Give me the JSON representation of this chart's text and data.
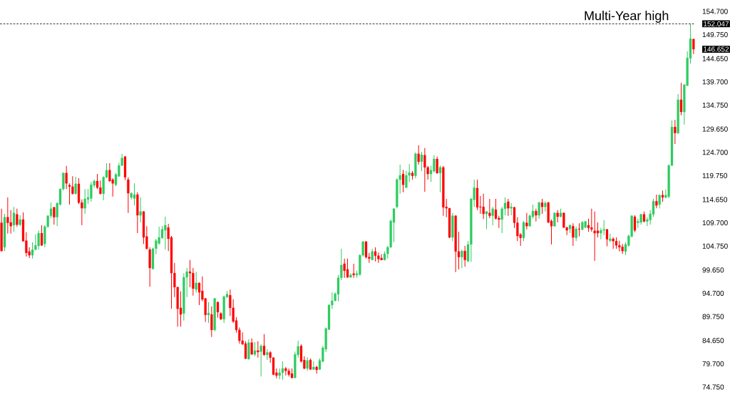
{
  "chart_data": {
    "type": "candlestick",
    "categories": [
      null,
      null,
      null,
      null,
      null,
      null,
      null,
      null,
      null,
      null,
      null,
      null,
      null,
      null,
      null,
      null,
      null,
      null,
      null,
      null,
      null,
      null,
      null,
      null,
      null,
      null,
      null,
      null,
      null,
      null,
      null,
      null,
      null,
      null,
      null,
      null,
      null,
      null,
      null,
      null,
      null,
      null,
      null,
      null,
      null,
      null,
      null,
      null,
      null,
      null,
      null,
      null,
      null,
      null,
      null,
      null,
      null,
      null,
      null,
      null,
      null,
      null,
      null,
      null,
      null,
      null,
      null,
      null,
      null,
      null,
      null,
      null,
      null,
      null,
      null,
      null,
      null,
      null,
      null,
      null,
      null,
      null,
      null,
      null,
      null,
      null,
      null,
      null,
      null,
      null,
      null,
      null,
      null,
      null,
      null,
      null,
      null,
      null,
      null,
      null,
      null,
      null,
      null,
      null,
      null,
      null,
      null,
      null,
      null,
      null,
      null,
      null,
      null,
      null,
      null,
      null,
      null,
      null,
      null,
      null,
      null,
      null,
      null,
      null,
      null,
      null,
      null,
      null,
      null,
      null,
      null,
      null,
      null,
      null,
      null,
      null,
      null,
      null,
      null,
      null,
      null,
      null,
      null,
      null,
      null,
      null,
      null,
      null,
      null,
      null,
      null,
      null,
      null,
      null,
      null,
      null,
      null,
      null,
      null,
      null,
      null,
      null,
      null,
      null,
      null,
      null,
      null,
      null,
      null,
      null,
      null,
      null,
      null,
      null,
      null,
      null,
      null,
      null,
      null,
      null,
      null,
      null,
      null,
      null,
      null,
      null,
      null,
      null,
      null,
      null,
      null,
      null,
      null,
      null,
      null,
      null,
      null,
      null,
      null,
      null,
      null,
      null,
      null,
      null,
      null,
      null,
      null,
      null,
      null,
      null,
      null,
      null,
      null,
      null,
      null,
      null,
      null,
      null,
      null,
      null,
      null,
      null,
      null,
      null,
      null
    ],
    "ohlc": [
      [
        109.7,
        112.7,
        103.6,
        103.7
      ],
      [
        104.5,
        111.6,
        103.7,
        110.9
      ],
      [
        110.9,
        115.1,
        107.4,
        109.7
      ],
      [
        109.8,
        112.4,
        107.4,
        109.0
      ],
      [
        109.2,
        113.1,
        107.8,
        111.8
      ],
      [
        111.5,
        112.7,
        108.9,
        109.3
      ],
      [
        109.3,
        111.3,
        109.0,
        110.4
      ],
      [
        110.4,
        111.9,
        105.7,
        105.8
      ],
      [
        105.9,
        107.7,
        102.5,
        103.3
      ],
      [
        103.6,
        104.5,
        102.2,
        102.8
      ],
      [
        102.8,
        105.6,
        102.1,
        104.0
      ],
      [
        104.0,
        107.2,
        103.9,
        104.9
      ],
      [
        104.8,
        108.1,
        104.0,
        107.5
      ],
      [
        107.5,
        109.2,
        104.8,
        104.9
      ],
      [
        105.2,
        109.2,
        104.5,
        108.9
      ],
      [
        108.9,
        111.3,
        108.6,
        111.2
      ],
      [
        111.2,
        114.0,
        110.7,
        112.7
      ],
      [
        113.0,
        113.1,
        109.3,
        110.9
      ],
      [
        110.9,
        114.0,
        109.0,
        113.9
      ],
      [
        113.6,
        117.0,
        113.4,
        116.9
      ],
      [
        116.9,
        120.4,
        116.6,
        120.3
      ],
      [
        120.3,
        121.8,
        116.9,
        118.1
      ],
      [
        117.7,
        118.1,
        113.6,
        117.4
      ],
      [
        117.4,
        119.6,
        115.7,
        115.9
      ],
      [
        115.9,
        119.5,
        115.7,
        118.0
      ],
      [
        118.0,
        119.2,
        113.7,
        114.0
      ],
      [
        114.0,
        114.7,
        109.2,
        112.8
      ],
      [
        112.8,
        116.9,
        111.6,
        114.8
      ],
      [
        114.7,
        116.9,
        113.7,
        115.1
      ],
      [
        114.9,
        118.4,
        114.2,
        117.8
      ],
      [
        117.7,
        118.9,
        117.2,
        118.6
      ],
      [
        118.6,
        120.1,
        116.9,
        117.2
      ],
      [
        117.2,
        118.7,
        115.7,
        115.9
      ],
      [
        115.9,
        119.6,
        114.5,
        119.4
      ],
      [
        119.4,
        122.4,
        119.2,
        120.9
      ],
      [
        120.9,
        122.4,
        118.4,
        118.6
      ],
      [
        118.9,
        119.2,
        115.3,
        118.1
      ],
      [
        117.8,
        120.3,
        117.5,
        120.0
      ],
      [
        119.6,
        122.5,
        119.5,
        121.9
      ],
      [
        121.9,
        124.4,
        121.8,
        123.5
      ],
      [
        123.8,
        123.9,
        118.8,
        119.4
      ],
      [
        118.9,
        119.4,
        111.8,
        116.0
      ],
      [
        115.1,
        116.2,
        114.7,
        116.0
      ],
      [
        114.9,
        118.1,
        113.4,
        115.7
      ],
      [
        115.7,
        116.2,
        107.5,
        111.3
      ],
      [
        111.3,
        115.1,
        109.8,
        112.1
      ],
      [
        112.1,
        112.2,
        105.2,
        106.6
      ],
      [
        106.8,
        109.0,
        104.0,
        104.2
      ],
      [
        104.0,
        104.5,
        96.1,
        100.1
      ],
      [
        99.9,
        104.4,
        99.8,
        104.2
      ],
      [
        104.2,
        106.3,
        103.0,
        105.9
      ],
      [
        105.3,
        108.9,
        105.0,
        106.6
      ],
      [
        106.5,
        109.0,
        106.3,
        108.3
      ],
      [
        108.1,
        111.0,
        104.0,
        109.2
      ],
      [
        108.7,
        109.5,
        103.7,
        106.3
      ],
      [
        106.6,
        106.9,
        91.4,
        99.0
      ],
      [
        99.0,
        101.2,
        93.9,
        96.0
      ],
      [
        96.0,
        96.1,
        87.6,
        91.4
      ],
      [
        91.6,
        95.1,
        87.6,
        90.2
      ],
      [
        90.4,
        99.0,
        88.9,
        98.1
      ],
      [
        98.1,
        100.1,
        93.9,
        99.3
      ],
      [
        99.3,
        101.8,
        96.0,
        99.0
      ],
      [
        99.0,
        100.1,
        94.2,
        95.7
      ],
      [
        95.5,
        99.3,
        94.8,
        96.9
      ],
      [
        96.9,
        97.0,
        92.2,
        94.9
      ],
      [
        95.2,
        98.3,
        93.0,
        93.4
      ],
      [
        93.6,
        93.7,
        88.6,
        90.1
      ],
      [
        90.1,
        92.8,
        88.4,
        90.5
      ],
      [
        90.2,
        91.9,
        85.4,
        86.9
      ],
      [
        86.9,
        93.7,
        86.6,
        93.6
      ],
      [
        92.8,
        93.0,
        89.5,
        90.7
      ],
      [
        90.4,
        90.7,
        89.0,
        89.2
      ],
      [
        89.2,
        94.2,
        88.4,
        94.0
      ],
      [
        93.9,
        95.2,
        93.7,
        94.5
      ],
      [
        94.3,
        95.5,
        89.9,
        91.6
      ],
      [
        91.6,
        93.4,
        88.4,
        88.7
      ],
      [
        88.9,
        89.6,
        86.3,
        86.9
      ],
      [
        86.9,
        87.4,
        84.0,
        84.6
      ],
      [
        84.6,
        86.4,
        83.7,
        83.9
      ],
      [
        84.0,
        84.5,
        80.7,
        80.8
      ],
      [
        80.7,
        84.9,
        80.6,
        84.2
      ],
      [
        84.2,
        85.1,
        81.6,
        81.7
      ],
      [
        81.7,
        84.3,
        81.3,
        82.5
      ],
      [
        82.5,
        84.5,
        81.0,
        82.2
      ],
      [
        82.3,
        83.8,
        77.0,
        83.5
      ],
      [
        83.5,
        86.0,
        81.4,
        81.6
      ],
      [
        81.6,
        82.8,
        80.5,
        82.1
      ],
      [
        82.1,
        82.4,
        79.9,
        81.0
      ],
      [
        81.0,
        81.1,
        77.3,
        77.4
      ],
      [
        77.8,
        78.7,
        76.6,
        77.2
      ],
      [
        77.2,
        78.7,
        76.4,
        77.8
      ],
      [
        77.8,
        80.2,
        76.3,
        78.7
      ],
      [
        78.7,
        79.0,
        77.2,
        78.2
      ],
      [
        78.2,
        78.7,
        77.0,
        77.4
      ],
      [
        77.6,
        78.7,
        76.6,
        76.7
      ],
      [
        76.7,
        82.3,
        76.6,
        81.7
      ],
      [
        81.6,
        84.6,
        81.0,
        83.4
      ],
      [
        83.5,
        83.8,
        80.0,
        80.2
      ],
      [
        80.5,
        81.3,
        78.5,
        78.7
      ],
      [
        78.7,
        81.1,
        78.2,
        80.4
      ],
      [
        80.5,
        80.8,
        78.4,
        78.5
      ],
      [
        78.5,
        80.2,
        78.4,
        79.0
      ],
      [
        79.0,
        79.3,
        77.6,
        78.4
      ],
      [
        78.5,
        80.8,
        78.4,
        80.4
      ],
      [
        80.2,
        83.5,
        80.0,
        83.1
      ],
      [
        82.8,
        87.4,
        82.2,
        87.2
      ],
      [
        87.0,
        92.4,
        86.9,
        92.2
      ],
      [
        92.2,
        94.9,
        91.4,
        93.1
      ],
      [
        93.1,
        94.9,
        93.0,
        94.6
      ],
      [
        94.5,
        98.6,
        93.0,
        98.0
      ],
      [
        98.0,
        104.2,
        97.5,
        100.7
      ],
      [
        101.0,
        102.1,
        98.0,
        99.5
      ],
      [
        99.8,
        102.1,
        98.0,
        98.1
      ],
      [
        98.1,
        99.0,
        98.0,
        98.6
      ],
      [
        98.9,
        101.0,
        98.0,
        98.6
      ],
      [
        98.6,
        99.5,
        98.0,
        98.9
      ],
      [
        98.7,
        103.0,
        98.4,
        102.8
      ],
      [
        102.8,
        105.8,
        102.5,
        105.7
      ],
      [
        105.7,
        105.8,
        102.1,
        102.4
      ],
      [
        102.4,
        103.3,
        101.2,
        102.1
      ],
      [
        101.8,
        104.2,
        101.7,
        103.6
      ],
      [
        103.6,
        104.5,
        101.5,
        102.7
      ],
      [
        102.7,
        103.4,
        101.2,
        102.0
      ],
      [
        102.2,
        103.0,
        101.7,
        101.8
      ],
      [
        101.8,
        103.6,
        101.7,
        103.1
      ],
      [
        103.1,
        104.8,
        102.1,
        104.5
      ],
      [
        104.5,
        110.4,
        104.4,
        110.1
      ],
      [
        109.8,
        112.8,
        105.6,
        112.7
      ],
      [
        113.1,
        119.2,
        112.8,
        118.9
      ],
      [
        118.9,
        122.1,
        115.9,
        119.8
      ],
      [
        120.1,
        121.0,
        116.2,
        117.8
      ],
      [
        117.2,
        120.7,
        117.1,
        119.8
      ],
      [
        119.8,
        122.2,
        118.4,
        120.4
      ],
      [
        120.3,
        120.7,
        118.9,
        119.7
      ],
      [
        119.7,
        124.7,
        119.2,
        124.4
      ],
      [
        124.4,
        126.2,
        122.1,
        122.7
      ],
      [
        122.7,
        124.8,
        120.7,
        124.2
      ],
      [
        124.1,
        125.6,
        116.3,
        121.5
      ],
      [
        121.5,
        121.8,
        118.9,
        120.1
      ],
      [
        120.1,
        121.8,
        118.4,
        120.9
      ],
      [
        120.7,
        124.1,
        120.4,
        123.3
      ],
      [
        123.3,
        123.8,
        120.1,
        120.3
      ],
      [
        120.3,
        121.9,
        116.2,
        121.5
      ],
      [
        121.5,
        121.8,
        111.2,
        113.0
      ],
      [
        113.1,
        114.8,
        110.9,
        112.8
      ],
      [
        112.8,
        112.9,
        106.4,
        106.6
      ],
      [
        106.6,
        111.8,
        105.8,
        111.2
      ],
      [
        111.2,
        111.3,
        99.2,
        103.6
      ],
      [
        103.6,
        107.8,
        99.8,
        102.4
      ],
      [
        102.4,
        104.0,
        100.0,
        103.7
      ],
      [
        103.7,
        104.8,
        100.4,
        101.8
      ],
      [
        101.5,
        105.8,
        101.4,
        105.1
      ],
      [
        105.1,
        115.0,
        101.4,
        114.8
      ],
      [
        114.6,
        118.9,
        113.1,
        117.2
      ],
      [
        117.1,
        118.9,
        112.4,
        113.0
      ],
      [
        113.1,
        115.4,
        111.6,
        113.0
      ],
      [
        113.1,
        115.9,
        110.5,
        111.6
      ],
      [
        111.6,
        112.2,
        108.4,
        112.1
      ],
      [
        111.8,
        114.8,
        110.7,
        111.2
      ],
      [
        111.2,
        113.1,
        109.2,
        112.7
      ],
      [
        112.5,
        114.8,
        110.4,
        110.6
      ],
      [
        110.7,
        111.2,
        108.6,
        110.4
      ],
      [
        110.4,
        113.1,
        107.5,
        112.7
      ],
      [
        112.7,
        115.1,
        111.3,
        113.9
      ],
      [
        114.2,
        114.8,
        111.2,
        112.8
      ],
      [
        112.8,
        113.9,
        111.3,
        113.1
      ],
      [
        113.0,
        113.1,
        108.6,
        109.7
      ],
      [
        109.7,
        110.9,
        105.8,
        106.9
      ],
      [
        107.2,
        107.5,
        104.8,
        106.5
      ],
      [
        106.5,
        110.1,
        105.8,
        109.8
      ],
      [
        109.7,
        111.8,
        108.3,
        109.0
      ],
      [
        109.0,
        111.5,
        108.9,
        111.2
      ],
      [
        111.0,
        113.6,
        110.6,
        112.2
      ],
      [
        112.2,
        112.7,
        110.0,
        111.3
      ],
      [
        111.3,
        114.2,
        110.6,
        114.0
      ],
      [
        114.0,
        114.8,
        111.6,
        113.1
      ],
      [
        113.1,
        114.3,
        112.1,
        113.9
      ],
      [
        114.0,
        114.2,
        109.6,
        109.8
      ],
      [
        110.1,
        110.4,
        105.1,
        109.0
      ],
      [
        109.0,
        111.9,
        108.9,
        111.8
      ],
      [
        111.8,
        112.4,
        109.8,
        111.0
      ],
      [
        111.0,
        112.7,
        110.9,
        111.8
      ],
      [
        111.8,
        111.9,
        108.6,
        108.7
      ],
      [
        108.7,
        108.9,
        107.1,
        108.1
      ],
      [
        108.4,
        109.3,
        107.5,
        109.2
      ],
      [
        109.0,
        109.6,
        104.8,
        106.6
      ],
      [
        106.5,
        108.9,
        105.8,
        108.4
      ],
      [
        108.4,
        109.6,
        106.8,
        108.3
      ],
      [
        108.3,
        110.1,
        108.1,
        109.8
      ],
      [
        108.7,
        110.1,
        108.6,
        110.0
      ],
      [
        109.2,
        110.6,
        107.8,
        108.6
      ],
      [
        108.7,
        112.7,
        107.8,
        108.3
      ],
      [
        108.0,
        112.1,
        101.6,
        107.5
      ],
      [
        108.0,
        109.8,
        106.6,
        107.5
      ],
      [
        107.5,
        108.6,
        106.2,
        108.1
      ],
      [
        108.1,
        110.3,
        107.1,
        108.3
      ],
      [
        108.3,
        108.4,
        104.7,
        106.2
      ],
      [
        105.9,
        107.4,
        105.6,
        106.3
      ],
      [
        106.3,
        106.6,
        104.2,
        105.8
      ],
      [
        105.8,
        106.6,
        104.2,
        104.9
      ],
      [
        104.9,
        105.9,
        103.6,
        104.5
      ],
      [
        104.6,
        105.2,
        103.1,
        103.7
      ],
      [
        103.6,
        105.6,
        102.8,
        105.1
      ],
      [
        104.9,
        107.2,
        104.6,
        106.9
      ],
      [
        106.8,
        111.3,
        106.6,
        111.2
      ],
      [
        111.0,
        111.3,
        107.7,
        108.1
      ],
      [
        109.7,
        110.6,
        108.6,
        110.0
      ],
      [
        109.8,
        111.6,
        109.3,
        111.5
      ],
      [
        111.5,
        112.1,
        109.8,
        110.0
      ],
      [
        110.0,
        110.9,
        109.0,
        110.4
      ],
      [
        110.3,
        112.4,
        109.3,
        111.6
      ],
      [
        111.5,
        114.8,
        111.0,
        114.3
      ],
      [
        114.3,
        115.7,
        112.8,
        113.4
      ],
      [
        113.6,
        115.7,
        112.8,
        115.6
      ],
      [
        115.6,
        116.6,
        114.2,
        115.1
      ],
      [
        115.1,
        116.8,
        114.9,
        115.6
      ],
      [
        115.3,
        122.2,
        114.9,
        121.9
      ],
      [
        121.9,
        131.5,
        121.8,
        130.1
      ],
      [
        130.1,
        131.6,
        126.5,
        128.8
      ],
      [
        128.8,
        137.1,
        128.6,
        135.9
      ],
      [
        135.9,
        139.5,
        132.6,
        133.3
      ],
      [
        133.3,
        139.2,
        130.6,
        139.1
      ],
      [
        138.9,
        146.2,
        138.8,
        144.8
      ],
      [
        144.7,
        152.047,
        143.6,
        148.9
      ],
      [
        148.8,
        148.9,
        145.6,
        146.652
      ]
    ],
    "colors": [
      "#ff0000",
      "#2ecc60",
      "#ff0000",
      "#ff0000",
      "#2ecc60",
      "#ff0000",
      "#2ecc60",
      "#ff0000",
      "#ff0000",
      "#ff0000",
      "#2ecc60",
      "#2ecc60",
      "#2ecc60",
      "#ff0000",
      "#2ecc60",
      "#2ecc60",
      "#2ecc60",
      "#ff0000",
      "#2ecc60",
      "#2ecc60",
      "#2ecc60",
      "#ff0000",
      "#ff0000",
      "#ff0000",
      "#2ecc60",
      "#ff0000",
      "#ff0000",
      "#2ecc60",
      "#2ecc60",
      "#2ecc60",
      "#2ecc60",
      "#ff0000",
      "#ff0000",
      "#2ecc60",
      "#2ecc60",
      "#ff0000",
      "#ff0000",
      "#2ecc60",
      "#2ecc60",
      "#2ecc60",
      "#ff0000",
      "#ff0000",
      "#2ecc60",
      "#2ecc60",
      "#ff0000",
      "#2ecc60",
      "#ff0000",
      "#ff0000",
      "#ff0000",
      "#2ecc60",
      "#2ecc60",
      "#2ecc60",
      "#2ecc60",
      "#2ecc60",
      "#ff0000",
      "#ff0000",
      "#ff0000",
      "#ff0000",
      "#ff0000",
      "#2ecc60",
      "#2ecc60",
      "#ff0000",
      "#ff0000",
      "#2ecc60",
      "#ff0000",
      "#ff0000",
      "#ff0000",
      "#2ecc60",
      "#ff0000",
      "#2ecc60",
      "#ff0000",
      "#ff0000",
      "#2ecc60",
      "#2ecc60",
      "#ff0000",
      "#ff0000",
      "#ff0000",
      "#ff0000",
      "#ff0000",
      "#ff0000",
      "#2ecc60",
      "#ff0000",
      "#2ecc60",
      "#ff0000",
      "#2ecc60",
      "#ff0000",
      "#2ecc60",
      "#ff0000",
      "#ff0000",
      "#ff0000",
      "#2ecc60",
      "#2ecc60",
      "#ff0000",
      "#ff0000",
      "#ff0000",
      "#2ecc60",
      "#2ecc60",
      "#ff0000",
      "#ff0000",
      "#2ecc60",
      "#ff0000",
      "#2ecc60",
      "#ff0000",
      "#2ecc60",
      "#2ecc60",
      "#2ecc60",
      "#2ecc60",
      "#2ecc60",
      "#2ecc60",
      "#2ecc60",
      "#2ecc60",
      "#ff0000",
      "#ff0000",
      "#2ecc60",
      "#ff0000",
      "#2ecc60",
      "#2ecc60",
      "#2ecc60",
      "#ff0000",
      "#ff0000",
      "#2ecc60",
      "#ff0000",
      "#ff0000",
      "#ff0000",
      "#2ecc60",
      "#2ecc60",
      "#2ecc60",
      "#2ecc60",
      "#2ecc60",
      "#2ecc60",
      "#ff0000",
      "#2ecc60",
      "#2ecc60",
      "#ff0000",
      "#2ecc60",
      "#ff0000",
      "#2ecc60",
      "#ff0000",
      "#ff0000",
      "#2ecc60",
      "#2ecc60",
      "#ff0000",
      "#2ecc60",
      "#ff0000",
      "#ff0000",
      "#ff0000",
      "#2ecc60",
      "#ff0000",
      "#ff0000",
      "#2ecc60",
      "#ff0000",
      "#2ecc60",
      "#2ecc60",
      "#2ecc60",
      "#ff0000",
      "#ff0000",
      "#ff0000",
      "#2ecc60",
      "#ff0000",
      "#2ecc60",
      "#ff0000",
      "#ff0000",
      "#2ecc60",
      "#2ecc60",
      "#ff0000",
      "#2ecc60",
      "#ff0000",
      "#ff0000",
      "#ff0000",
      "#2ecc60",
      "#ff0000",
      "#2ecc60",
      "#2ecc60",
      "#ff0000",
      "#2ecc60",
      "#ff0000",
      "#2ecc60",
      "#ff0000",
      "#ff0000",
      "#2ecc60",
      "#ff0000",
      "#2ecc60",
      "#ff0000",
      "#ff0000",
      "#2ecc60",
      "#ff0000",
      "#2ecc60",
      "#ff0000",
      "#2ecc60",
      "#2ecc60",
      "#ff0000",
      "#ff0000",
      "#ff0000",
      "#ff0000",
      "#2ecc60",
      "#2ecc60",
      "#ff0000",
      "#2ecc60",
      "#ff0000",
      "#ff0000",
      "#ff0000",
      "#ff0000",
      "#2ecc60",
      "#2ecc60",
      "#2ecc60",
      "#ff0000",
      "#2ecc60",
      "#2ecc60",
      "#ff0000",
      "#2ecc60",
      "#2ecc60",
      "#2ecc60",
      "#ff0000",
      "#2ecc60",
      "#ff0000",
      "#2ecc60",
      "#2ecc60",
      "#2ecc60",
      "#ff0000",
      "#2ecc60",
      "#ff0000",
      "#2ecc60",
      "#2ecc60",
      "#2ecc60",
      "#ff0000"
    ],
    "ylim": [
      74.75,
      154.7
    ],
    "yticks": [
      {
        "value": 154.7,
        "label": "154.700"
      },
      {
        "value": 149.75,
        "label": "149.750"
      },
      {
        "value": 144.65,
        "label": "144.650"
      },
      {
        "value": 139.7,
        "label": "139.700"
      },
      {
        "value": 134.75,
        "label": "134.750"
      },
      {
        "value": 129.65,
        "label": "129.650"
      },
      {
        "value": 124.7,
        "label": "124.700"
      },
      {
        "value": 119.75,
        "label": "119.750"
      },
      {
        "value": 114.65,
        "label": "114.650"
      },
      {
        "value": 109.7,
        "label": "109.700"
      },
      {
        "value": 104.75,
        "label": "104.750"
      },
      {
        "value": 99.65,
        "label": "99.650"
      },
      {
        "value": 94.7,
        "label": "94.700"
      },
      {
        "value": 89.75,
        "label": "89.750"
      },
      {
        "value": 84.65,
        "label": "84.650"
      },
      {
        "value": 79.7,
        "label": "79.700"
      },
      {
        "value": 74.75,
        "label": "74.750"
      },
      152.047,
      146.652
    ],
    "ref_lines": [
      {
        "axis": "y",
        "value": 152.047,
        "label": "Multi-Year high",
        "color": "#000000",
        "line_style": "dashed"
      }
    ]
  }
}
